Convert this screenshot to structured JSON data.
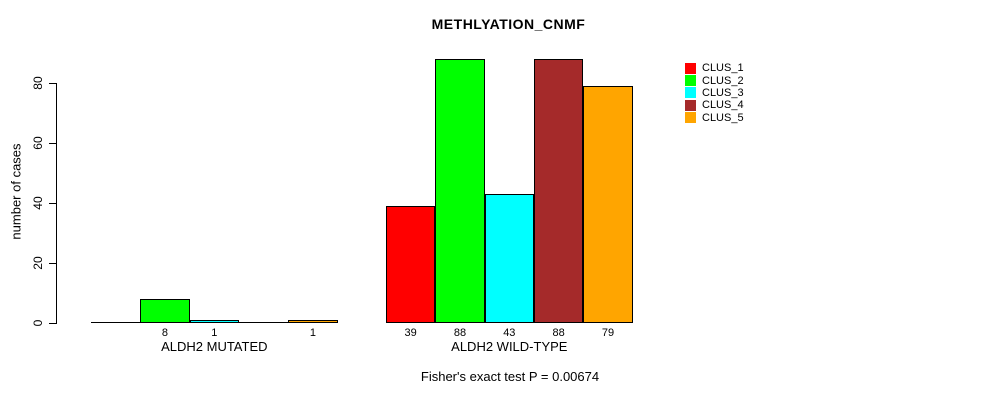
{
  "title": "METHLYATION_CNMF",
  "chart_data": {
    "type": "bar",
    "title": "METHLYATION_CNMF",
    "xlabel": "",
    "ylabel": "number of cases",
    "groups": [
      "ALDH2 MUTATED",
      "ALDH2 WILD-TYPE"
    ],
    "series": [
      {
        "name": "CLUS_1",
        "color": "#FF0000",
        "values": [
          0,
          39
        ]
      },
      {
        "name": "CLUS_2",
        "color": "#00FF00",
        "values": [
          8,
          88
        ]
      },
      {
        "name": "CLUS_3",
        "color": "#00FFFF",
        "values": [
          1,
          43
        ]
      },
      {
        "name": "CLUS_4",
        "color": "#A52A2A",
        "values": [
          0,
          88
        ]
      },
      {
        "name": "CLUS_5",
        "color": "#FFA500",
        "values": [
          1,
          79
        ]
      }
    ],
    "bar_value_labels": [
      [
        "",
        "8",
        "1",
        "",
        "1"
      ],
      [
        "39",
        "88",
        "43",
        "88",
        "79"
      ]
    ],
    "yticks": [
      "0",
      "20",
      "40",
      "60",
      "80"
    ],
    "ylim": [
      0,
      88
    ],
    "grid": false,
    "legend_position": "top-right",
    "legend": [
      {
        "label": "CLUS_1",
        "color": "#FF0000"
      },
      {
        "label": "CLUS_2",
        "color": "#00FF00"
      },
      {
        "label": "CLUS_3",
        "color": "#00FFFF"
      },
      {
        "label": "CLUS_4",
        "color": "#A52A2A"
      },
      {
        "label": "CLUS_5",
        "color": "#FFA500"
      }
    ],
    "annotation": "Fisher's exact test P = 0.00674",
    "axis_color": "#000000",
    "background_color": "#FFFFFF"
  }
}
